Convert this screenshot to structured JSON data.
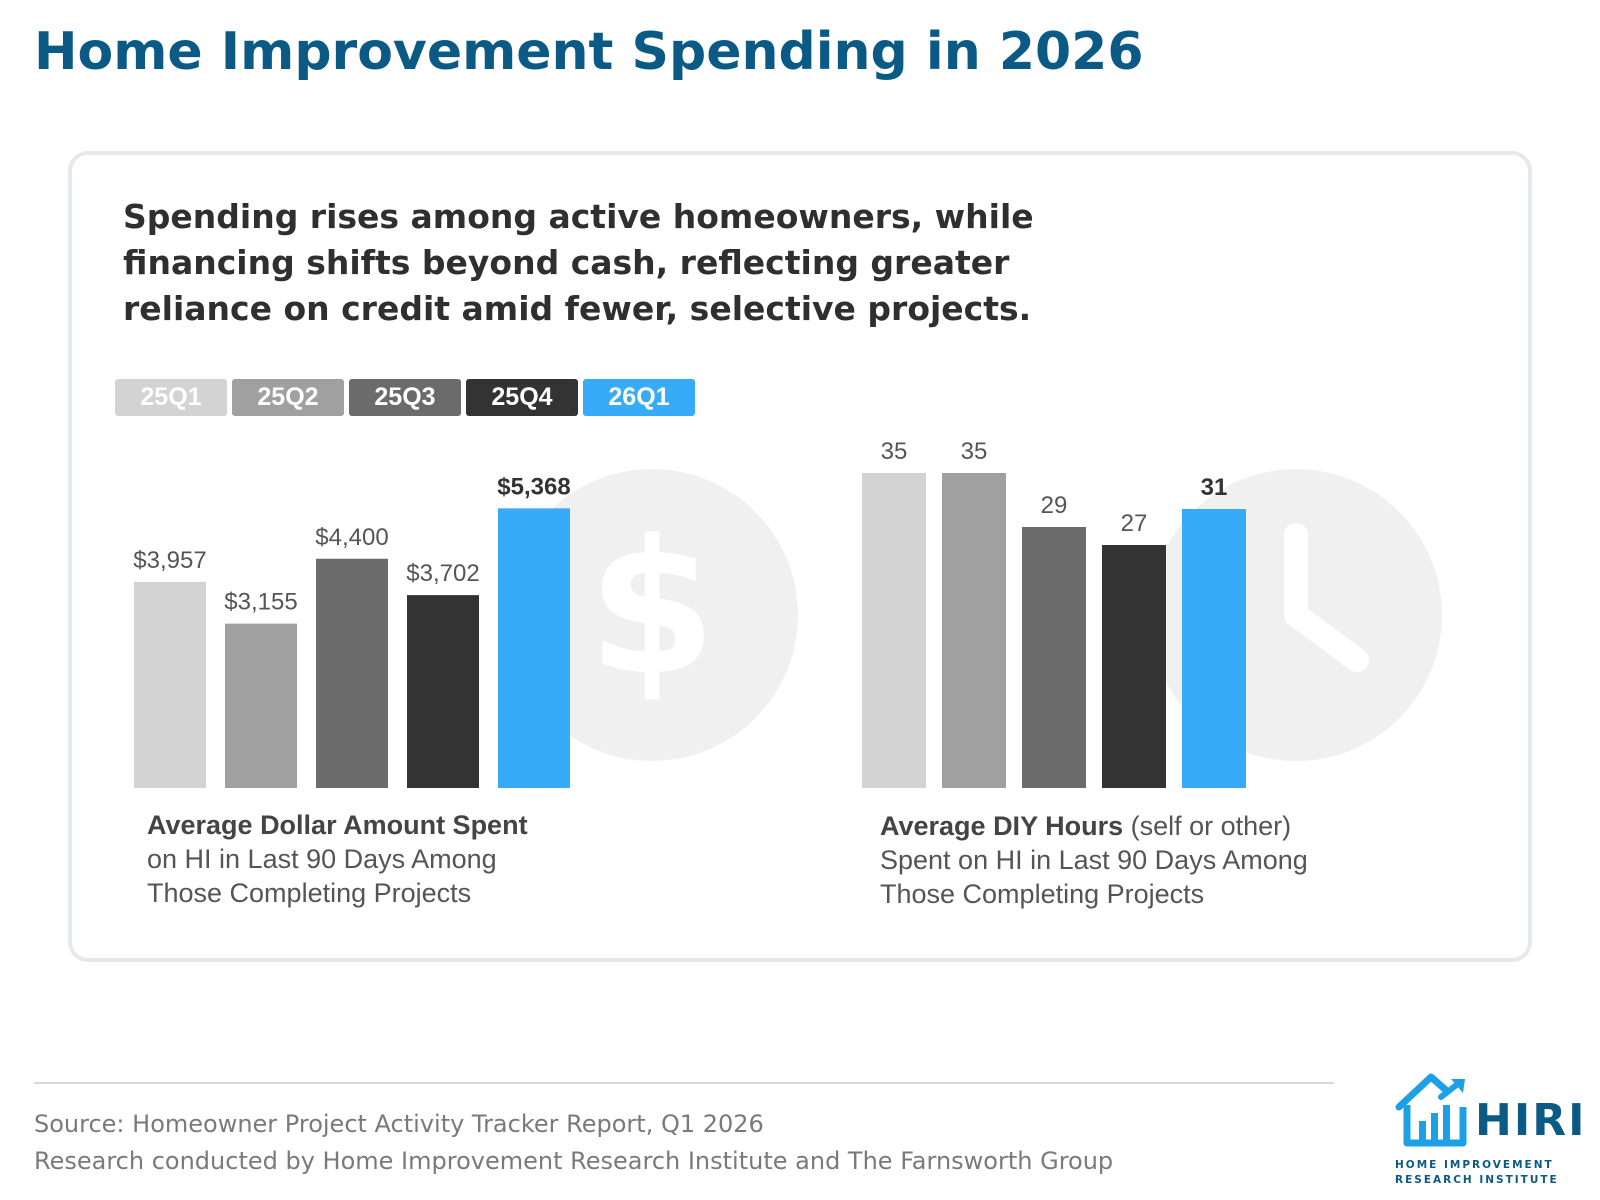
{
  "page": {
    "title": "Home Improvement Spending in 2026"
  },
  "card": {
    "headline": "Spending rises among active homeowners, while financing shifts beyond cash, reflecting greater reliance on credit amid fewer, selective projects."
  },
  "legend": [
    {
      "label": "25Q1",
      "color": "#d3d3d3"
    },
    {
      "label": "25Q2",
      "color": "#a0a0a0"
    },
    {
      "label": "25Q3",
      "color": "#6b6b6b"
    },
    {
      "label": "25Q4",
      "color": "#333333"
    },
    {
      "label": "26Q1",
      "color": "#37aaf8"
    }
  ],
  "chart_data": [
    {
      "type": "bar",
      "categories": [
        "25Q1",
        "25Q2",
        "25Q3",
        "25Q4",
        "26Q1"
      ],
      "values": [
        3957,
        3155,
        4400,
        3702,
        5368
      ],
      "data_labels": [
        "$3,957",
        "$3,155",
        "$4,400",
        "$3,702",
        "$5,368"
      ],
      "colors": [
        "#d3d3d3",
        "#a0a0a0",
        "#6b6b6b",
        "#333333",
        "#37aaf8"
      ],
      "highlight_index": 4,
      "background_icon": "dollar-icon",
      "caption_bold": "Average Dollar Amount Spent",
      "caption_rest": "",
      "caption_lines": [
        "on HI in Last 90 Days Among",
        "Those Completing Projects"
      ]
    },
    {
      "type": "bar",
      "categories": [
        "25Q1",
        "25Q2",
        "25Q3",
        "25Q4",
        "26Q1"
      ],
      "values": [
        35,
        35,
        29,
        27,
        31
      ],
      "data_labels": [
        "35",
        "35",
        "29",
        "27",
        "31"
      ],
      "colors": [
        "#d3d3d3",
        "#a0a0a0",
        "#6b6b6b",
        "#333333",
        "#37aaf8"
      ],
      "highlight_index": 4,
      "background_icon": "clock-icon",
      "caption_bold": "Average DIY Hours",
      "caption_rest": " (self or other)",
      "caption_lines": [
        "Spent on HI in Last 90 Days Among",
        "Those Completing Projects"
      ]
    }
  ],
  "footer": {
    "source_line1": "Source: Homeowner Project Activity Tracker Report, Q1 2026",
    "source_line2": "Research conducted by Home Improvement Research Institute and The Farnsworth Group"
  },
  "logo": {
    "wordmark": "HIRI",
    "sub_line1": "HOME IMPROVEMENT",
    "sub_line2": "RESEARCH INSTITUTE"
  }
}
